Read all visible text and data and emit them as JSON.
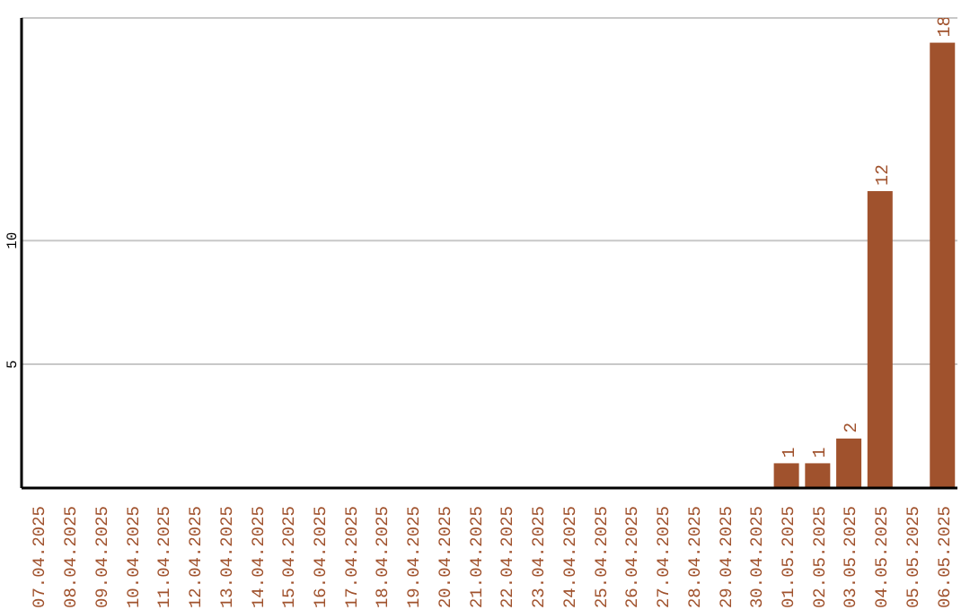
{
  "chart_data": {
    "type": "bar",
    "categories": [
      "07.04.2025",
      "08.04.2025",
      "09.04.2025",
      "10.04.2025",
      "11.04.2025",
      "12.04.2025",
      "13.04.2025",
      "14.04.2025",
      "15.04.2025",
      "16.04.2025",
      "17.04.2025",
      "18.04.2025",
      "19.04.2025",
      "20.04.2025",
      "21.04.2025",
      "22.04.2025",
      "23.04.2025",
      "24.04.2025",
      "25.04.2025",
      "26.04.2025",
      "27.04.2025",
      "28.04.2025",
      "29.04.2025",
      "30.04.2025",
      "01.05.2025",
      "02.05.2025",
      "03.05.2025",
      "04.05.2025",
      "05.05.2025",
      "06.05.2025"
    ],
    "values": [
      0,
      0,
      0,
      0,
      0,
      0,
      0,
      0,
      0,
      0,
      0,
      0,
      0,
      0,
      0,
      0,
      0,
      0,
      0,
      0,
      0,
      0,
      0,
      0,
      1,
      1,
      2,
      12,
      0,
      18
    ],
    "value_labels": [
      null,
      null,
      null,
      null,
      null,
      null,
      null,
      null,
      null,
      null,
      null,
      null,
      null,
      null,
      null,
      null,
      null,
      null,
      null,
      null,
      null,
      null,
      null,
      null,
      "1",
      "1",
      "2",
      "12",
      null,
      "18"
    ],
    "color": "#a0522d",
    "ylim": [
      0,
      19
    ],
    "yticks": [
      5,
      10
    ],
    "grid": "y"
  }
}
